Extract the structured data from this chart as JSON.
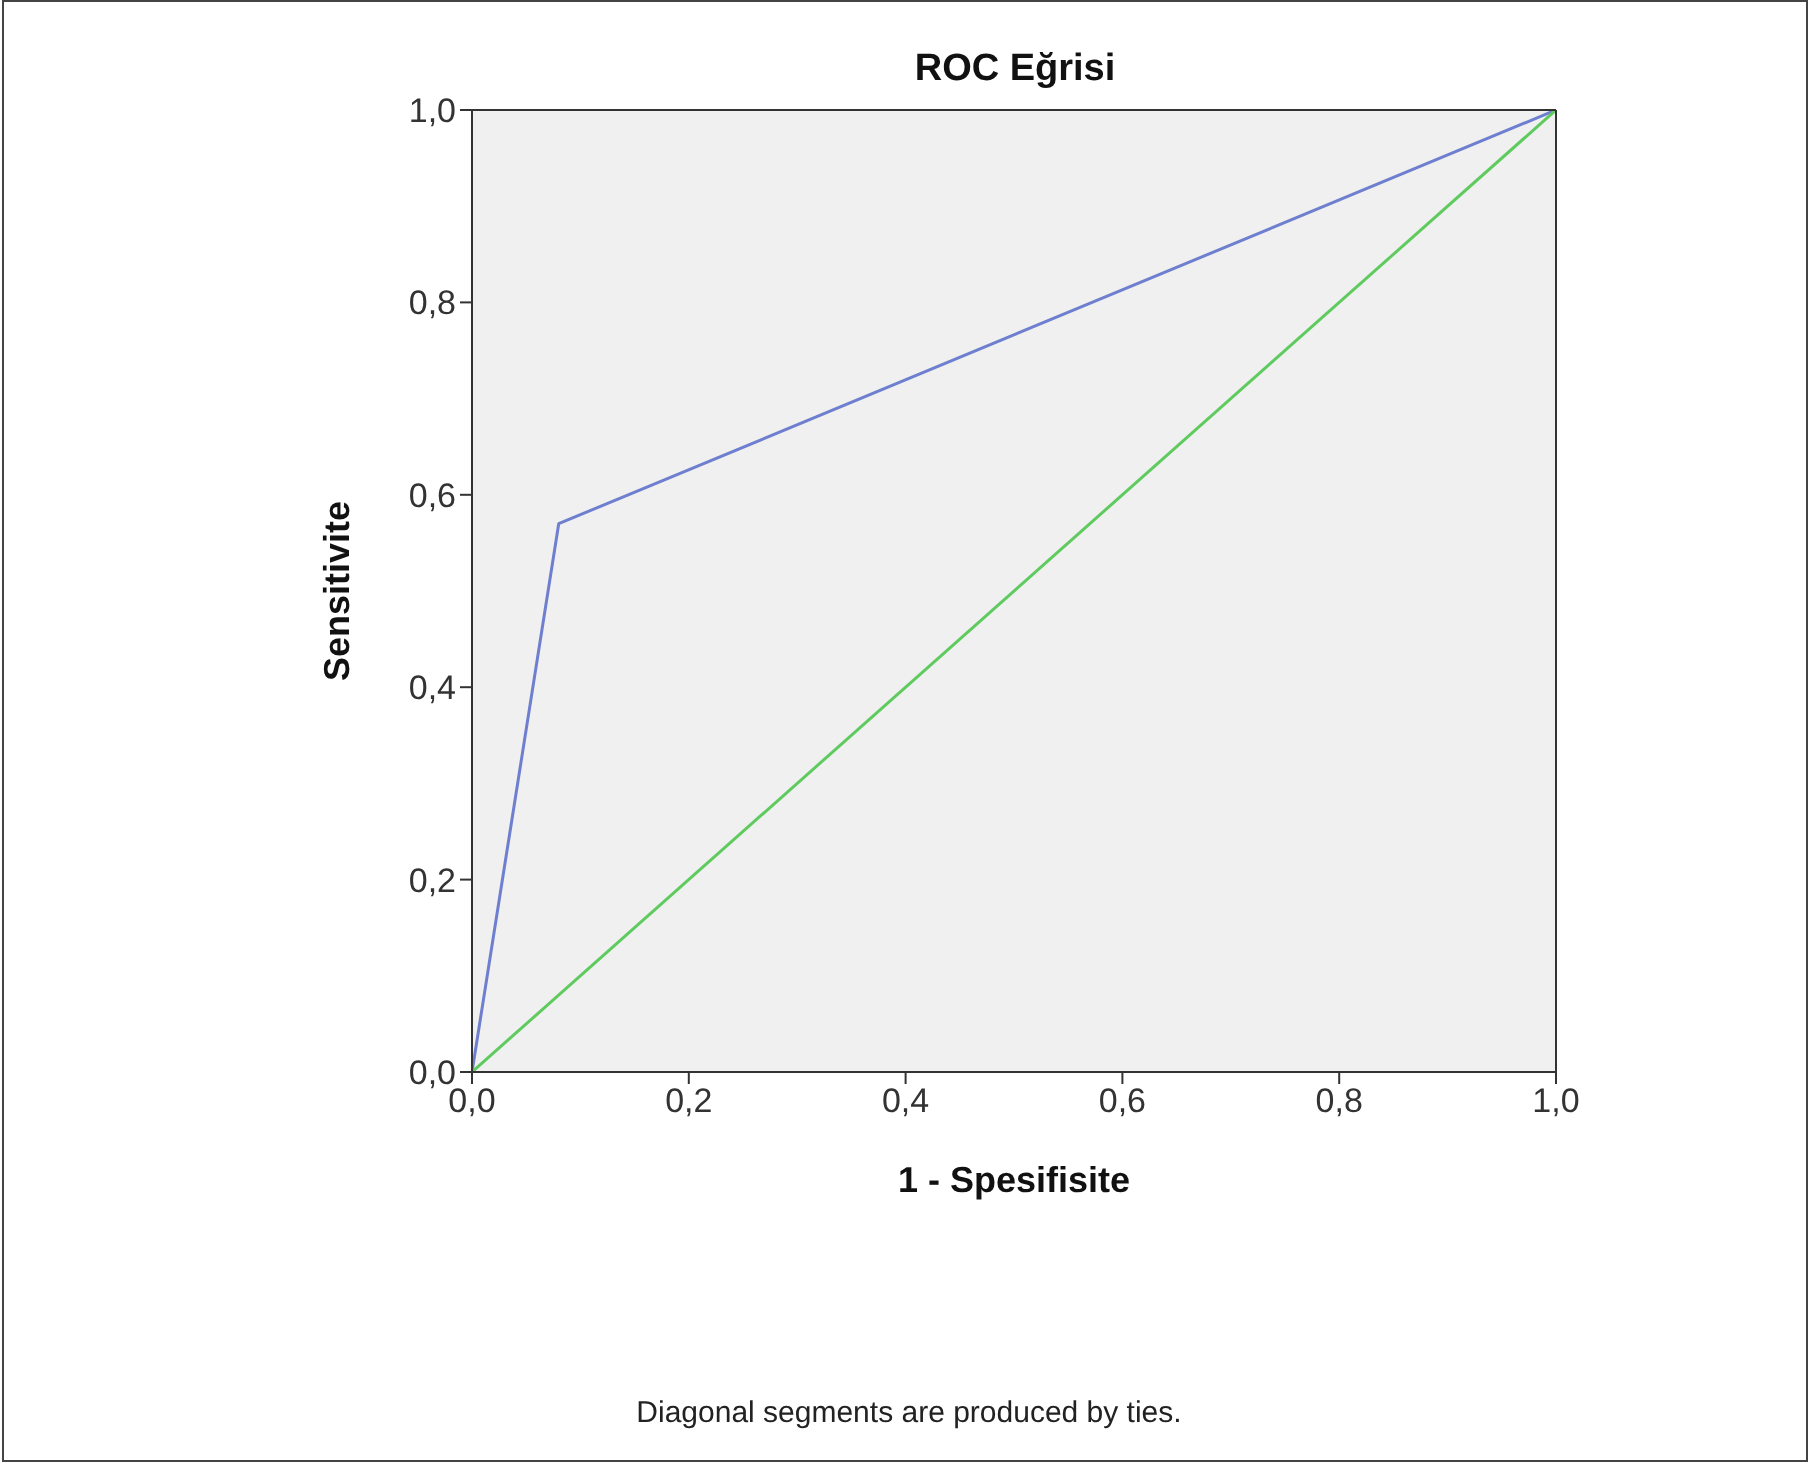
{
  "chart_data": {
    "type": "line",
    "title": "ROC Eğrisi",
    "xlabel": "1 - Spesifisite",
    "ylabel": "Sensitivite",
    "annotations": [
      "Diagonal segments are produced by ties."
    ],
    "series": [
      {
        "color": "#6e7fcf",
        "x": [
          0,
          0.08,
          1
        ],
        "values": [
          0,
          0.57,
          1
        ]
      },
      {
        "color": "#5fcb5f",
        "x": [
          0,
          1
        ],
        "values": [
          0,
          1
        ]
      }
    ],
    "xlim": [
      0,
      1
    ],
    "ylim": [
      0,
      1
    ],
    "xticks": [
      {
        "value": 0,
        "label": "0,0"
      },
      {
        "value": 0.2,
        "label": "0,2"
      },
      {
        "value": 0.4,
        "label": "0,4"
      },
      {
        "value": 0.6,
        "label": "0,6"
      },
      {
        "value": 0.8,
        "label": "0,8"
      },
      {
        "value": 1,
        "label": "1,0"
      }
    ],
    "yticks": [
      {
        "value": 0,
        "label": "0,0"
      },
      {
        "value": 0.2,
        "label": "0,2"
      },
      {
        "value": 0.4,
        "label": "0,4"
      },
      {
        "value": 0.6,
        "label": "0,6"
      },
      {
        "value": 0.8,
        "label": "0,8"
      },
      {
        "value": 1,
        "label": "1,0"
      }
    ],
    "marker": "none",
    "line_style": "solid",
    "grid": false
  }
}
